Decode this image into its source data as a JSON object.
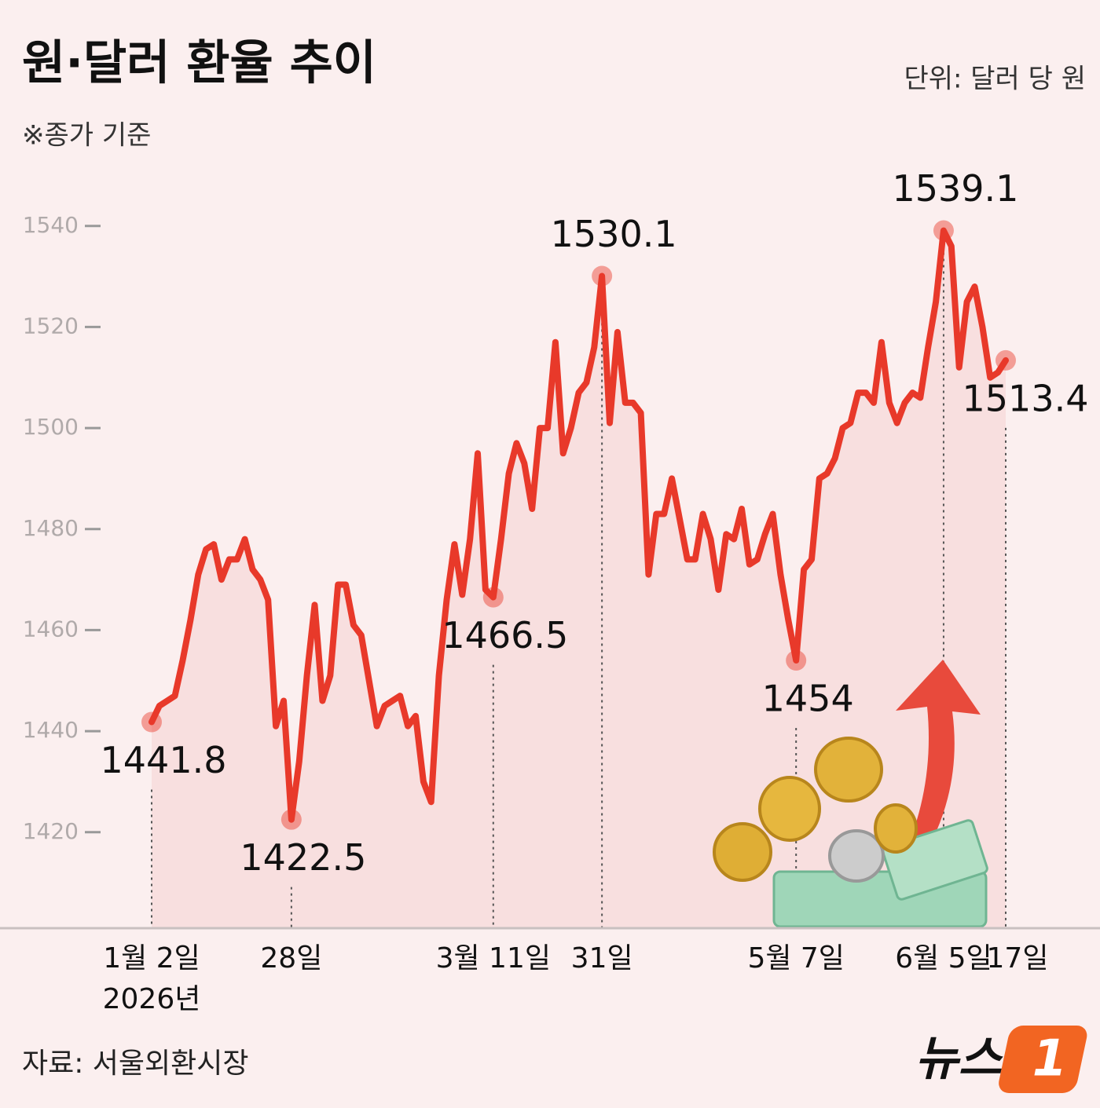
{
  "chart_data": {
    "type": "line",
    "title": "원·달러 환율 추이",
    "subtitle": "※종가 기준",
    "unit": "단위: 달러 당 원",
    "source": "자료: 서울외환시장",
    "logo": [
      "뉴스",
      "1"
    ],
    "x_year": "2026년",
    "categories": [
      "1월 2일",
      null,
      null,
      null,
      null,
      null,
      null,
      null,
      null,
      null,
      null,
      null,
      null,
      null,
      null,
      null,
      null,
      null,
      "28일",
      null,
      null,
      null,
      null,
      null,
      null,
      null,
      null,
      null,
      null,
      null,
      null,
      null,
      null,
      null,
      null,
      null,
      null,
      null,
      null,
      null,
      null,
      null,
      null,
      null,
      "3월 11일",
      null,
      null,
      null,
      null,
      null,
      null,
      null,
      null,
      null,
      null,
      null,
      null,
      null,
      "31일",
      null,
      null,
      null,
      null,
      null,
      null,
      null,
      null,
      null,
      null,
      null,
      null,
      null,
      null,
      null,
      null,
      null,
      null,
      null,
      null,
      null,
      null,
      null,
      null,
      "5월 7일",
      null,
      null,
      null,
      null,
      null,
      null,
      null,
      null,
      null,
      null,
      null,
      null,
      null,
      null,
      null,
      null,
      null,
      null,
      "6월 5일",
      null,
      null,
      null,
      null,
      null,
      null,
      null,
      "17일"
    ],
    "series": [
      {
        "name": "원·달러 환율",
        "color": "#e8392a",
        "values": [
          1441.8,
          1445,
          1446,
          1447,
          1454,
          1462,
          1471,
          1476,
          1477,
          1470,
          1474,
          1474,
          1478,
          1472,
          1470,
          1466,
          1441,
          1446,
          1422.5,
          1434,
          1451,
          1465,
          1446,
          1451,
          1469,
          1469,
          1461,
          1459,
          1450,
          1441,
          1445,
          1446,
          1447,
          1441,
          1443,
          1430,
          1426,
          1451,
          1466,
          1477,
          1467,
          1478,
          1495,
          1468,
          1466.5,
          1478,
          1491,
          1497,
          1493,
          1484,
          1500,
          1500,
          1517,
          1495,
          1500,
          1507,
          1509,
          1516,
          1530.1,
          1501,
          1519,
          1505,
          1505,
          1503,
          1471,
          1483,
          1483,
          1490,
          1482,
          1474,
          1474,
          1483,
          1478,
          1468,
          1479,
          1478,
          1484,
          1473,
          1474,
          1479,
          1483,
          1471,
          1462,
          1454,
          1472,
          1474,
          1490,
          1491,
          1494,
          1500,
          1501,
          1507,
          1507,
          1505,
          1517,
          1505,
          1501,
          1505,
          1507,
          1506,
          1516,
          1525,
          1539.1,
          1536,
          1512,
          1525,
          1528,
          1520,
          1510,
          1511,
          1513.4
        ]
      }
    ],
    "ylim": [
      1401,
      1554
    ],
    "yticks": [
      1420,
      1440,
      1460,
      1480,
      1500,
      1520,
      1540
    ]
  }
}
